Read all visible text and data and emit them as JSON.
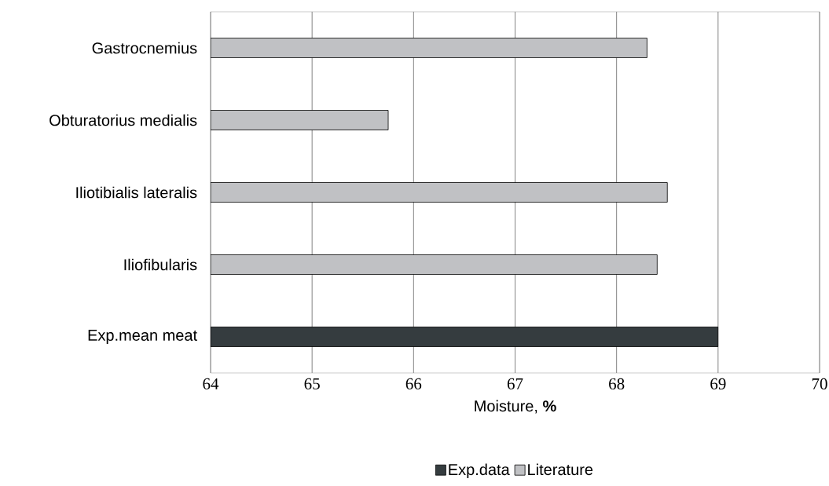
{
  "chart_data": {
    "type": "bar",
    "orientation": "horizontal",
    "xlabel": "Moisture, **%**",
    "categories": [
      "Gastrocnemius",
      "Obturatorius medialis",
      "Iliotibialis lateralis",
      "Iliofibularis",
      "Exp.mean meat"
    ],
    "series": [
      {
        "name": "Exp.data",
        "color": "#353c3f",
        "values": [
          null,
          null,
          null,
          null,
          69.0
        ]
      },
      {
        "name": "Literature",
        "color": "#c0c1c4",
        "values": [
          68.3,
          65.75,
          68.5,
          68.4,
          null
        ]
      }
    ],
    "xlim": [
      64,
      70
    ],
    "xticks": [
      64,
      65,
      66,
      67,
      68,
      69,
      70
    ],
    "grid": "x",
    "legend": "bottom"
  }
}
